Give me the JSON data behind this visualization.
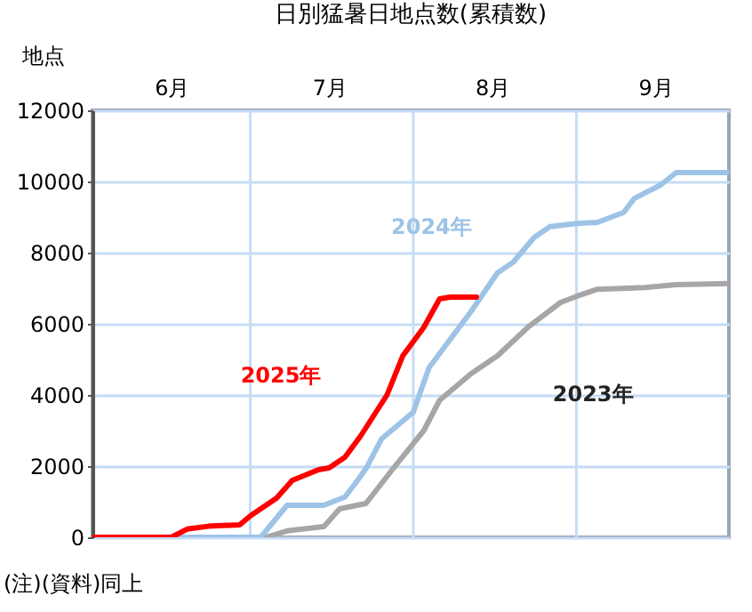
{
  "chart_data": {
    "type": "line",
    "title": "日別猛暑日地点数(累積数)",
    "ylabel": "地点",
    "annotations": [
      "(注)(資料)同上"
    ],
    "xlim": [
      "--06-01",
      "--09-30"
    ],
    "xticks": [
      {
        "value": "--06-16",
        "label": "6月"
      },
      {
        "value": "--07-01",
        "label": null
      },
      {
        "value": "--07-16",
        "label": "7月"
      },
      {
        "value": "--08-01",
        "label": null
      },
      {
        "value": "--08-16",
        "label": "8月"
      },
      {
        "value": "--09-01",
        "label": null
      },
      {
        "value": "--09-16",
        "label": "9月"
      }
    ],
    "ylim": [
      0,
      12000
    ],
    "yticks": [
      0,
      2000,
      4000,
      6000,
      8000,
      10000,
      12000
    ],
    "grid": true,
    "legend": false,
    "series": [
      {
        "name": "2025年",
        "color": "#ff0000",
        "x": [
          "--06-01",
          "--06-16",
          "--06-19",
          "--06-23",
          "--06-29",
          "--07-01",
          "--07-06",
          "--07-09",
          "--07-14",
          "--07-16",
          "--07-19",
          "--07-22",
          "--07-27",
          "--07-30",
          "--08-03",
          "--08-06",
          "--08-08",
          "--08-13"
        ],
        "values": [
          0,
          0,
          230,
          310,
          350,
          600,
          1100,
          1600,
          1900,
          1950,
          2250,
          2850,
          4000,
          5100,
          5900,
          6700,
          6750,
          6750
        ]
      },
      {
        "name": "2024年",
        "color": "#9dc3e6",
        "x": [
          "--06-01",
          "--07-03",
          "--07-08",
          "--07-15",
          "--07-19",
          "--07-21",
          "--07-23",
          "--07-26",
          "--08-01",
          "--08-04",
          "--08-12",
          "--08-17",
          "--08-20",
          "--08-24",
          "--08-27",
          "--09-01",
          "--09-05",
          "--09-10",
          "--09-12",
          "--09-17",
          "--09-20",
          "--09-30"
        ],
        "values": [
          0,
          0,
          900,
          900,
          1130,
          1520,
          1930,
          2770,
          3520,
          4770,
          6350,
          7430,
          7730,
          8430,
          8730,
          8820,
          8850,
          9130,
          9520,
          9900,
          10250,
          10250
        ]
      },
      {
        "name": "2023年",
        "color": "#a6a6a6",
        "x": [
          "--06-01",
          "--07-04",
          "--07-08",
          "--07-15",
          "--07-18",
          "--07-23",
          "--07-28",
          "--08-03",
          "--08-06",
          "--08-12",
          "--08-17",
          "--08-23",
          "--08-29",
          "--09-01",
          "--09-05",
          "--09-14",
          "--09-20",
          "--09-30"
        ],
        "values": [
          0,
          0,
          180,
          300,
          800,
          950,
          1900,
          3000,
          3850,
          4600,
          5100,
          5930,
          6600,
          6770,
          6970,
          7020,
          7100,
          7130
        ]
      }
    ]
  }
}
